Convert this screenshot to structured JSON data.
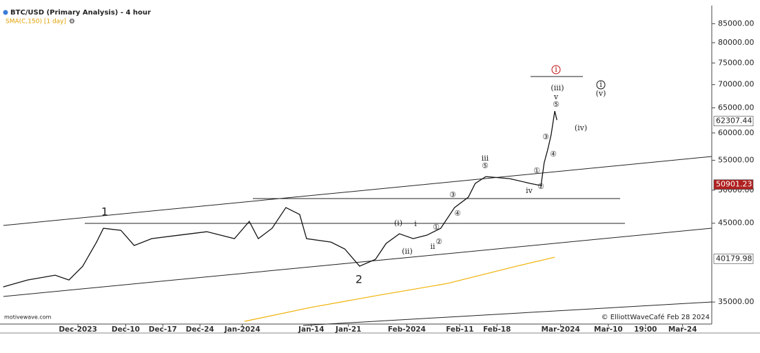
{
  "chart_data": {
    "type": "line",
    "title": "BTC/USD (Primary Analysis) - 4 hour",
    "subtitle": "SMA(C,150) [1 day]",
    "source": "motivewave.com",
    "credit": "© ElliottWaveCafé Feb 28 2024",
    "log_scale": true,
    "xlim": [
      -14.7,
      119.5
    ],
    "xticks": [
      {
        "value": 0,
        "label": "Dec-2023"
      },
      {
        "value": 9,
        "label": "Dec-10"
      },
      {
        "value": 16,
        "label": "Dec-17"
      },
      {
        "value": 23,
        "label": "Dec-24"
      },
      {
        "value": 31,
        "label": "Jan-2024"
      },
      {
        "value": 44,
        "label": "Jan-14"
      },
      {
        "value": 51,
        "label": "Jan-21"
      },
      {
        "value": 62,
        "label": "Feb-2024"
      },
      {
        "value": 72,
        "label": "Feb-11"
      },
      {
        "value": 79,
        "label": "Feb-18"
      },
      {
        "value": 91,
        "label": "Mar-2024"
      },
      {
        "value": 100,
        "label": "Mar-10"
      },
      {
        "value": 107,
        "label": "19:00"
      },
      {
        "value": 114,
        "label": "Mar-24"
      }
    ],
    "ylim": [
      32630,
      90070
    ],
    "yticks": [
      {
        "value": 85000,
        "label": "85000.00"
      },
      {
        "value": 80000,
        "label": "80000.00"
      },
      {
        "value": 75000,
        "label": "75000.00"
      },
      {
        "value": 70000,
        "label": "70000.00"
      },
      {
        "value": 65000,
        "label": "65000.00"
      },
      {
        "value": 60000,
        "label": "60000.00"
      },
      {
        "value": 55000,
        "label": "55000.00"
      },
      {
        "value": 50000,
        "label": "50000.00"
      },
      {
        "value": 45000,
        "label": "45000.00"
      },
      {
        "value": 35000,
        "label": "35000.00"
      }
    ],
    "series": [
      {
        "color": "#111111",
        "x": [
          -14.1,
          -9.5,
          -4.3,
          -1.7,
          0.9,
          3.5,
          4.8,
          8.1,
          10.6,
          13.9,
          19.1,
          24.3,
          29.5,
          32.3,
          34.0,
          36.6,
          39.2,
          41.8,
          43.1,
          47.7,
          50.3,
          53.1,
          56.1,
          58.1,
          60.6,
          63.2,
          65.8,
          68.4,
          71.0,
          73.6,
          74.9,
          76.9,
          81.4,
          85.3,
          87.3,
          87.9,
          88.6,
          89.2,
          89.9,
          90.3
        ],
        "values": [
          36730,
          37550,
          38130,
          37550,
          39240,
          42370,
          44280,
          43990,
          41910,
          42840,
          43320,
          43800,
          42840,
          45260,
          42840,
          44280,
          47300,
          46270,
          42840,
          42370,
          41450,
          39240,
          40110,
          42190,
          43510,
          42840,
          43320,
          44280,
          47300,
          48890,
          51080,
          52210,
          51870,
          51080,
          50740,
          54560,
          57010,
          59580,
          64330,
          62510
        ]
      },
      {
        "color": "#f0b000",
        "x": [
          31.4,
          43.8,
          56.8,
          69.7,
          82.7,
          89.9
        ],
        "values": [
          32910,
          34390,
          35780,
          37140,
          39240,
          40380
        ]
      }
    ],
    "price_labels": [
      {
        "value": 62307.44,
        "color": "#222222",
        "background": "#ffffff"
      },
      {
        "value": 50901.23,
        "color": "#ffffff",
        "background": "#b02020"
      },
      {
        "value": 40179.98,
        "color": "#222222",
        "background": "#ffffff"
      }
    ],
    "wave_labels": [
      "1",
      "2",
      "(i)",
      "i",
      "①",
      "②",
      "ii",
      "(ii)",
      "③",
      "④",
      "iii",
      "⑤",
      "iv",
      "①",
      "②",
      "③",
      "④",
      "⑤",
      "v",
      "(iii)",
      "i",
      "i",
      "(v)",
      "(iv)"
    ]
  }
}
